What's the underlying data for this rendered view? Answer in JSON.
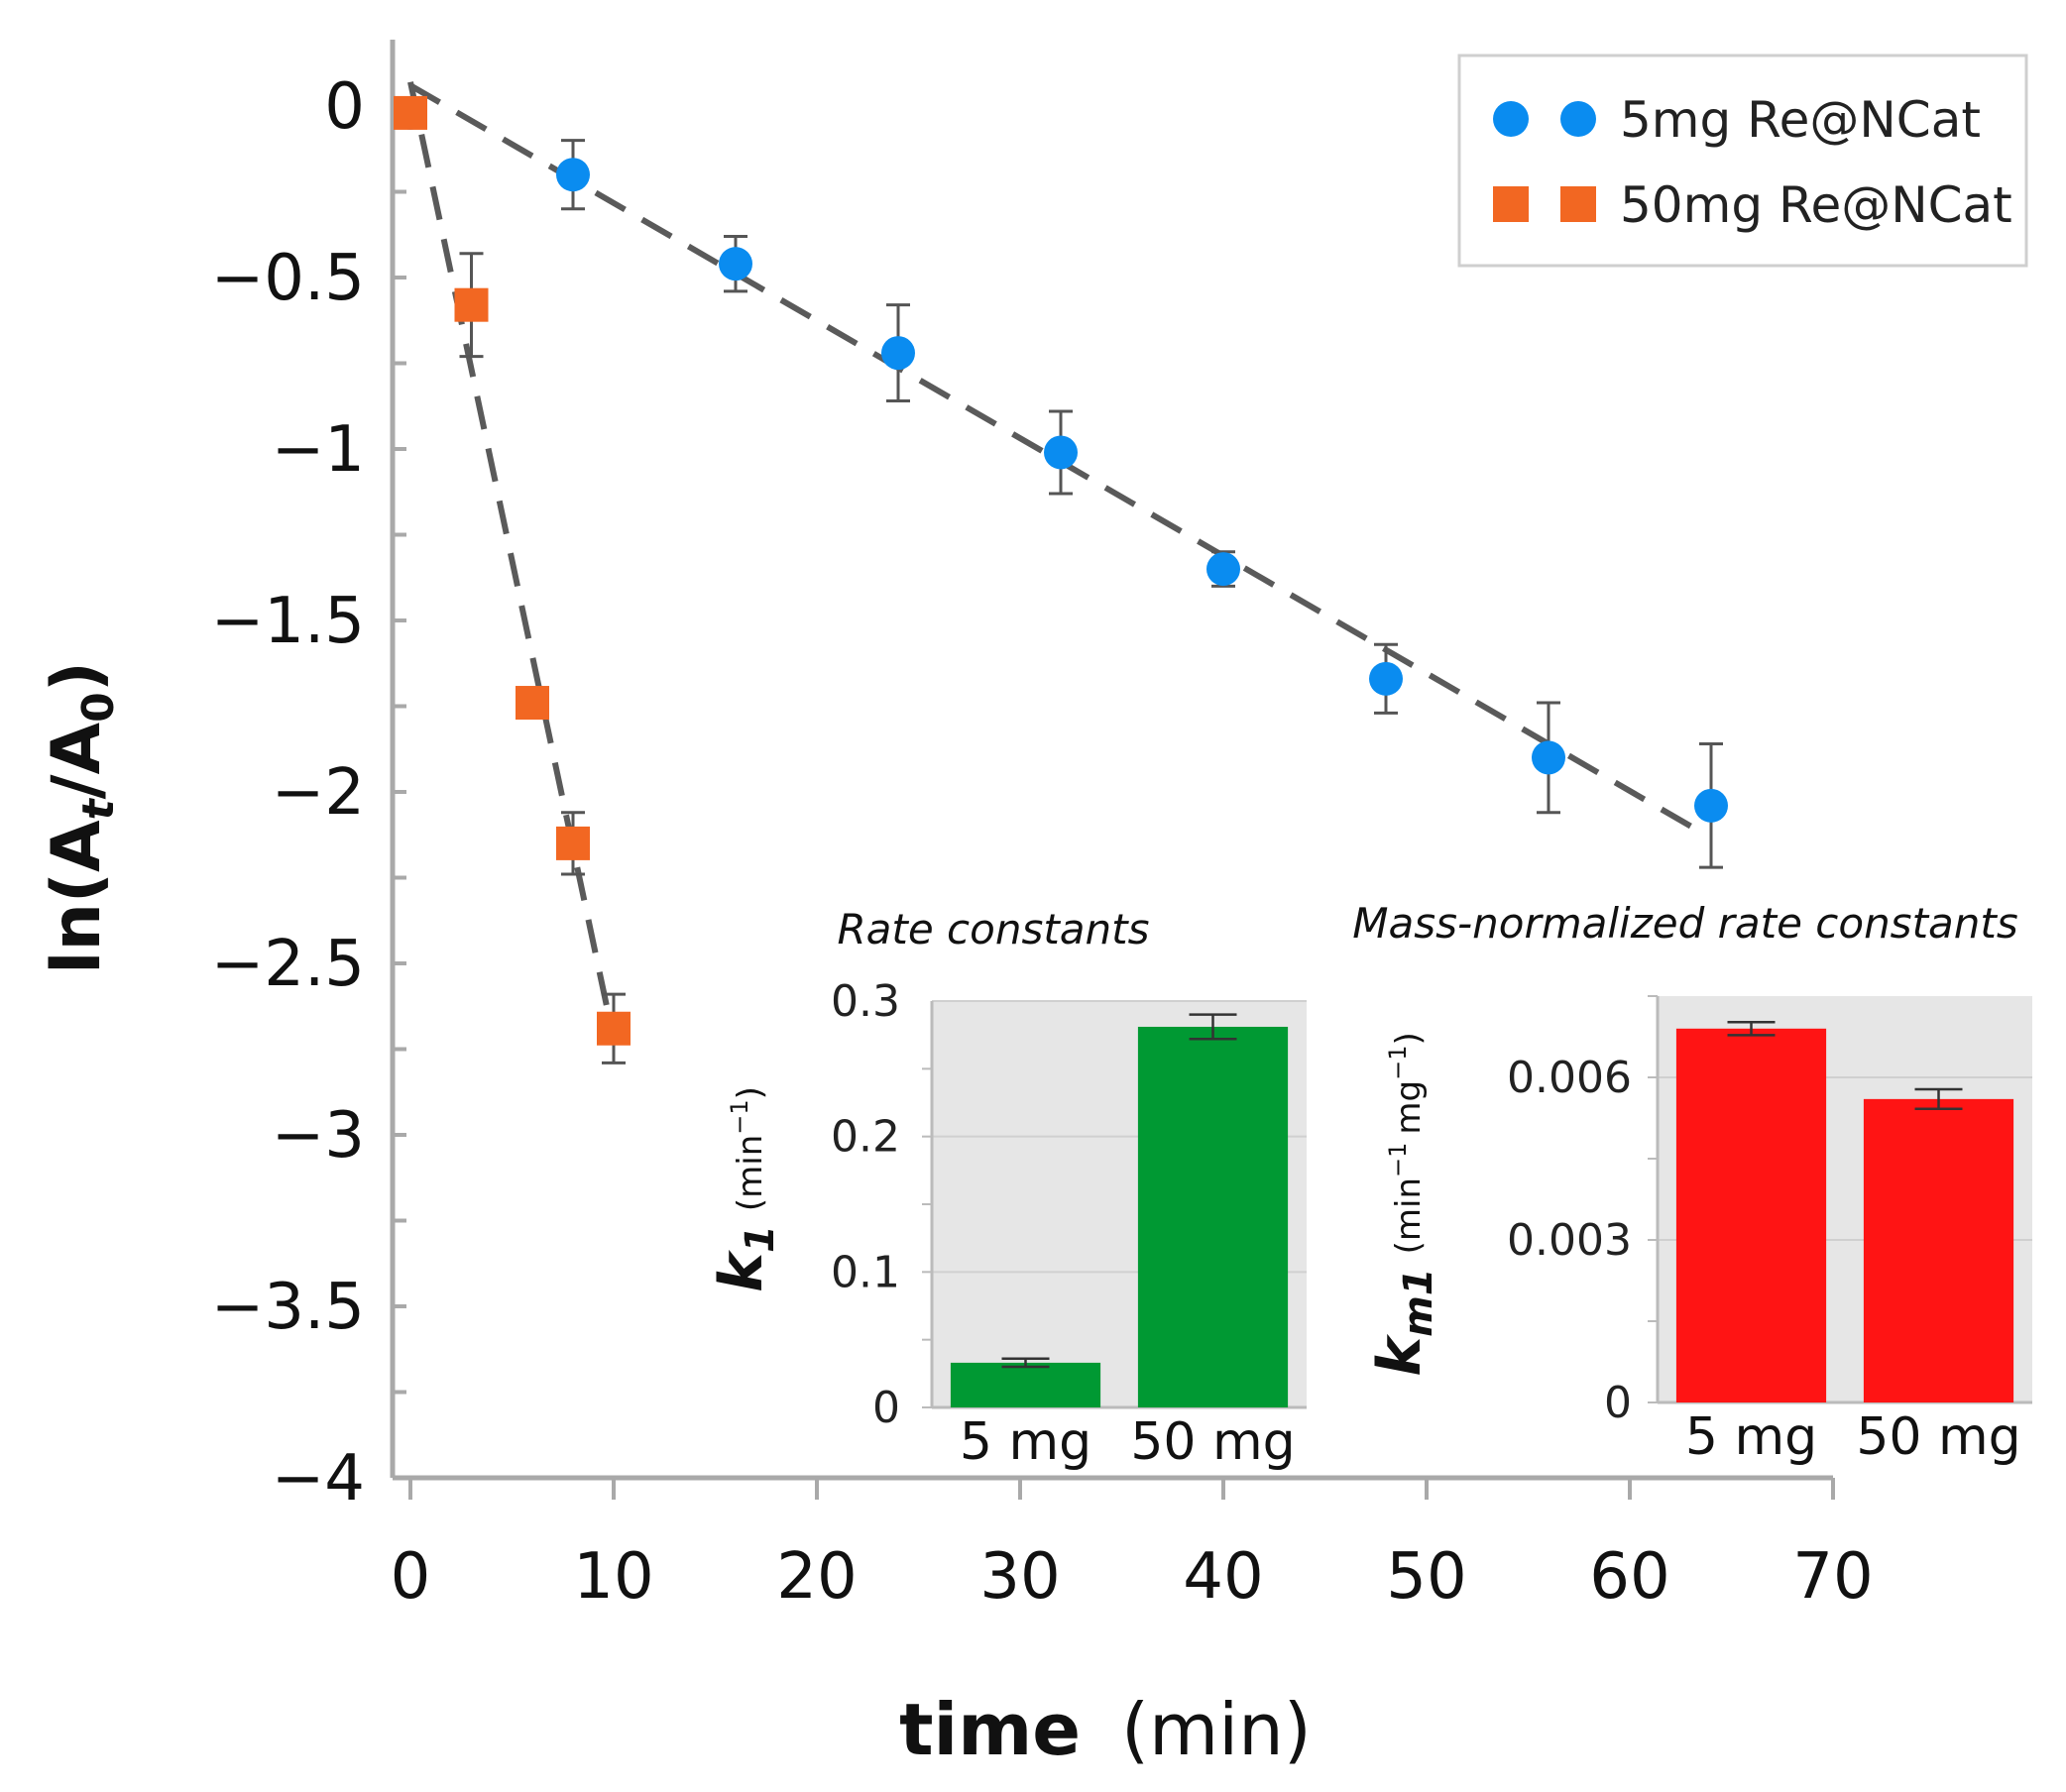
{
  "chart_data": [
    {
      "type": "scatter",
      "xlabel_bold": "time",
      "xlabel_rest": "(min)",
      "ylabel_parts": [
        "ln(A",
        "t",
        "/A",
        "0",
        ")"
      ],
      "xlim": [
        -1,
        70
      ],
      "ylim": [
        -4,
        0.2
      ],
      "xticks": [
        0,
        10,
        20,
        30,
        40,
        50,
        60,
        70
      ],
      "xtick_labels": [
        "0",
        "10",
        "20",
        "30",
        "40",
        "50",
        "60",
        "70"
      ],
      "yticks": [
        0,
        -0.5,
        -1,
        -1.5,
        -2,
        -2.5,
        -3,
        -3.5,
        -4
      ],
      "ytick_labels": [
        "0",
        "−0.5",
        "−1",
        "−1.5",
        "−2",
        "−2.5",
        "−3",
        "−3.5",
        "−4"
      ],
      "legend_position": "top-right",
      "series": [
        {
          "name": "5mg Re@NCat",
          "marker": "circle",
          "color": "#0a8cf0",
          "x": [
            0,
            8,
            16,
            24,
            32,
            40,
            48,
            56,
            64
          ],
          "y": [
            -0.02,
            -0.2,
            -0.46,
            -0.72,
            -1.01,
            -1.35,
            -1.67,
            -1.9,
            -2.04
          ],
          "error": [
            0.02,
            0.1,
            0.08,
            0.14,
            0.12,
            0.05,
            0.1,
            0.16,
            0.18
          ],
          "fit": {
            "x": [
              0,
              63
            ],
            "y": [
              0.06,
              -2.1
            ]
          }
        },
        {
          "name": "50mg Re@NCat",
          "marker": "square",
          "color": "#f26722",
          "x": [
            0,
            3,
            6,
            8,
            10
          ],
          "y": [
            -0.02,
            -0.58,
            -1.74,
            -2.15,
            -2.69
          ],
          "error": [
            0.02,
            0.15,
            0.04,
            0.09,
            0.1
          ],
          "fit": {
            "x": [
              0,
              10
            ],
            "y": [
              0.07,
              -2.72
            ]
          }
        }
      ]
    },
    {
      "type": "bar",
      "title": "Rate constants",
      "ylabel_symbol": "k",
      "ylabel_sub": "1",
      "ylabel_unit": "(min",
      "ylabel_unit_sup": "−1",
      "ylabel_unit_end": ")",
      "categories": [
        "5 mg",
        "50 mg"
      ],
      "values": [
        0.033,
        0.281
      ],
      "errors": [
        0.003,
        0.009
      ],
      "ylim": [
        0,
        0.3
      ],
      "yticks": [
        0,
        0.1,
        0.2,
        0.3
      ],
      "ytick_labels": [
        "0",
        "0.1",
        "0.2",
        "0.3"
      ],
      "color": "#009933",
      "background": "#e6e6e6",
      "grid": true
    },
    {
      "type": "bar",
      "title": "Mass-normalized rate constants",
      "ylabel_symbol": "k",
      "ylabel_sub": "m1",
      "ylabel_unit": "(min",
      "ylabel_unit_sup": "−1",
      "ylabel_unit_mid": "mg",
      "ylabel_unit_sup2": "−1",
      "ylabel_unit_end": ")",
      "categories": [
        "5 mg",
        "50 mg"
      ],
      "values": [
        0.0069,
        0.0056
      ],
      "errors": [
        0.00012,
        0.00018
      ],
      "ylim": [
        0,
        0.0075
      ],
      "yticks": [
        0,
        0.003,
        0.006
      ],
      "ytick_labels": [
        "0",
        "0.003",
        "0.006"
      ],
      "color": "#ff1414",
      "background": "#e6e6e6",
      "grid": true
    }
  ]
}
